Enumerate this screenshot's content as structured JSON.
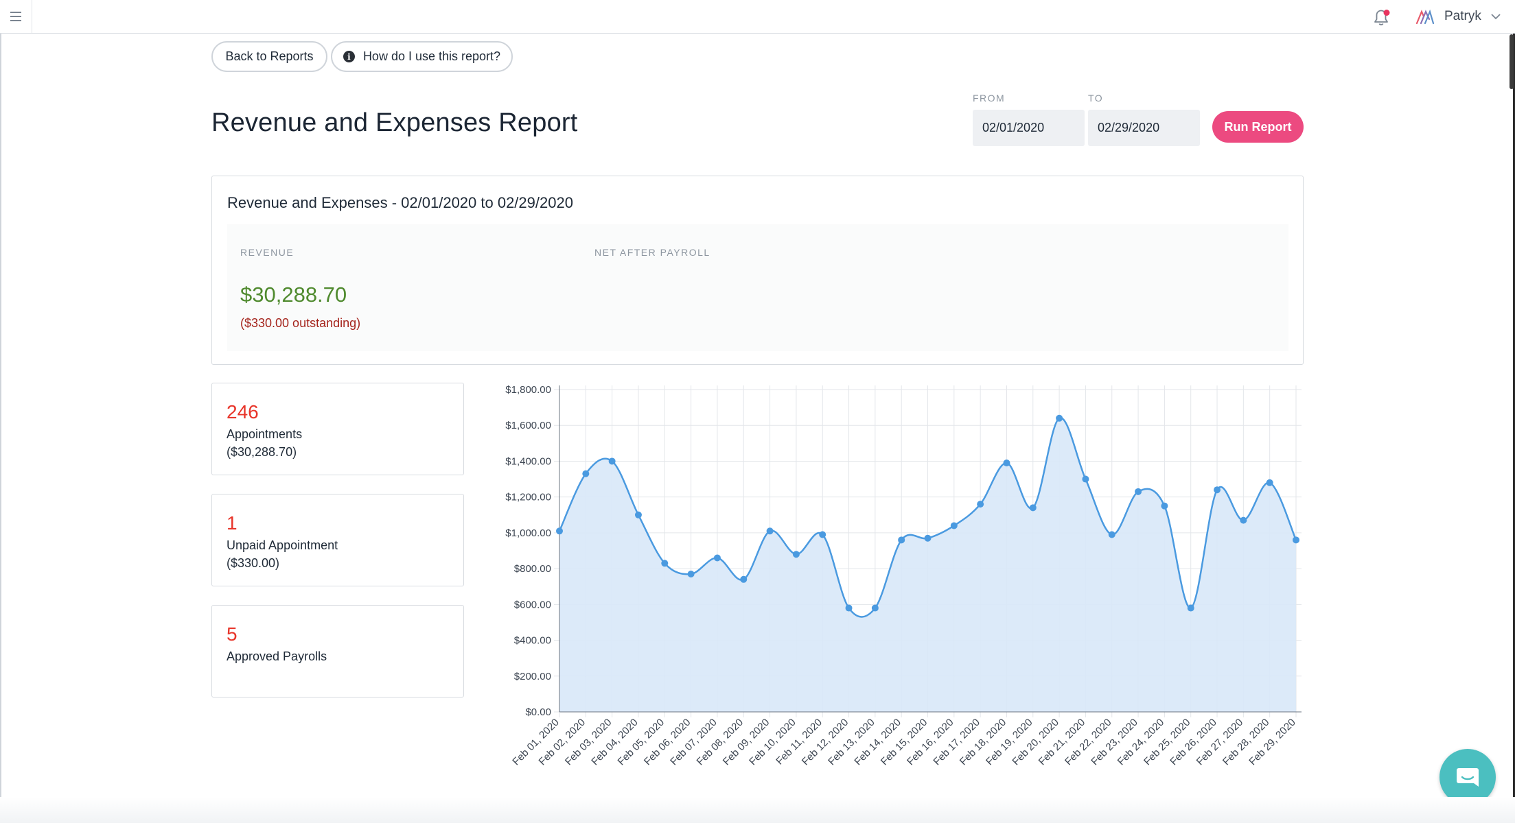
{
  "topbar": {
    "user_name": "Patryk"
  },
  "actions": {
    "back_label": "Back to Reports",
    "help_label": "How do I use this report?"
  },
  "page": {
    "title": "Revenue and Expenses Report"
  },
  "filters": {
    "from_label": "FROM",
    "to_label": "TO",
    "from_value": "02/01/2020",
    "to_value": "02/29/2020",
    "run_label": "Run Report"
  },
  "summary": {
    "title": "Revenue and Expenses - 02/01/2020 to 02/29/2020",
    "revenue_label": "REVENUE",
    "revenue_value": "$30,288.70",
    "outstanding": "($330.00 outstanding)",
    "net_label": "NET AFTER PAYROLL"
  },
  "stats": [
    {
      "number": "246",
      "label": "Appointments",
      "sub": "($30,288.70)"
    },
    {
      "number": "1",
      "label": "Unpaid Appointment",
      "sub": "($330.00)"
    },
    {
      "number": "5",
      "label": "Approved Payrolls",
      "sub": ""
    }
  ],
  "colors": {
    "accent": "#ec4a80",
    "revenue": "#4f8a2e",
    "outstanding": "#a5251d",
    "stat_number": "#e8352a",
    "series_line": "#4a9ae0",
    "series_fill": "#d8e8f8"
  },
  "chart_data": {
    "type": "area",
    "categories": [
      "Feb 01, 2020",
      "Feb 02, 2020",
      "Feb 03, 2020",
      "Feb 04, 2020",
      "Feb 05, 2020",
      "Feb 06, 2020",
      "Feb 07, 2020",
      "Feb 08, 2020",
      "Feb 09, 2020",
      "Feb 10, 2020",
      "Feb 11, 2020",
      "Feb 12, 2020",
      "Feb 13, 2020",
      "Feb 14, 2020",
      "Feb 15, 2020",
      "Feb 16, 2020",
      "Feb 17, 2020",
      "Feb 18, 2020",
      "Feb 19, 2020",
      "Feb 20, 2020",
      "Feb 21, 2020",
      "Feb 22, 2020",
      "Feb 23, 2020",
      "Feb 24, 2020",
      "Feb 25, 2020",
      "Feb 26, 2020",
      "Feb 27, 2020",
      "Feb 28, 2020",
      "Feb 29, 2020"
    ],
    "values": [
      1010,
      1330,
      1400,
      1100,
      830,
      770,
      860,
      740,
      1010,
      880,
      990,
      580,
      580,
      960,
      970,
      1040,
      1160,
      1390,
      1140,
      1640,
      1300,
      990,
      1230,
      1150,
      580,
      1240,
      1070,
      1280,
      960
    ],
    "y_ticks": [
      "$0.00",
      "$200.00",
      "$400.00",
      "$600.00",
      "$800.00",
      "$1,000.00",
      "$1,200.00",
      "$1,400.00",
      "$1,600.00",
      "$1,800.00"
    ],
    "ylim": [
      0,
      1800
    ],
    "grid": true
  }
}
